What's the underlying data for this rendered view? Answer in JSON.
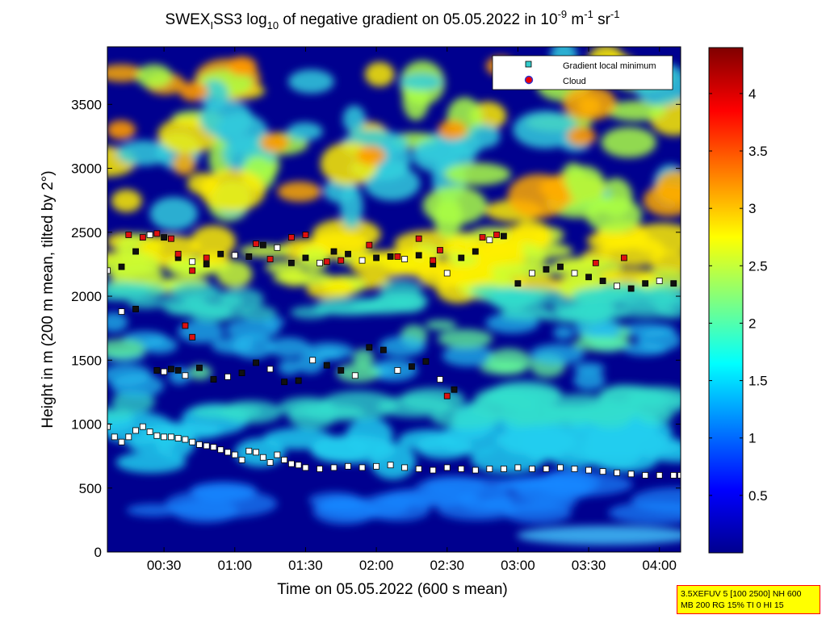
{
  "chart_data": {
    "type": "heatmap",
    "title": {
      "prefix": "SWEX",
      "prefix_sub": "I",
      "mid": "SS3 log",
      "log_sub": "10",
      "rest": " of negative gradient on 05.05.2022 in 10",
      "exp1": "-9",
      "unit_m": " m",
      "exp2": "-1",
      "unit_sr": " sr",
      "exp3": "-1"
    },
    "xlabel": "Time on 05.05.2022 (600 s mean)",
    "ylabel": "Height in m (200 m mean, tilted by 2°)",
    "x_range_hours": [
      0.1,
      4.15
    ],
    "xticks": [
      {
        "t": 0.5,
        "label": "00:30"
      },
      {
        "t": 1.0,
        "label": "01:00"
      },
      {
        "t": 1.5,
        "label": "01:30"
      },
      {
        "t": 2.0,
        "label": "02:00"
      },
      {
        "t": 2.5,
        "label": "02:30"
      },
      {
        "t": 3.0,
        "label": "03:00"
      },
      {
        "t": 3.5,
        "label": "03:30"
      },
      {
        "t": 4.0,
        "label": "04:00"
      }
    ],
    "ylim": [
      0,
      3950
    ],
    "yticks": [
      0,
      500,
      1000,
      1500,
      2000,
      2500,
      3000,
      3500
    ],
    "colorbar": {
      "range": [
        0,
        4.4
      ],
      "ticks": [
        {
          "v": 0.5,
          "label": "0.5"
        },
        {
          "v": 1,
          "label": "1"
        },
        {
          "v": 1.5,
          "label": "1.5"
        },
        {
          "v": 2,
          "label": "2"
        },
        {
          "v": 2.5,
          "label": "2.5"
        },
        {
          "v": 3,
          "label": "3"
        },
        {
          "v": 3.5,
          "label": "3.5"
        },
        {
          "v": 4,
          "label": "4"
        }
      ]
    },
    "legend": {
      "placement": "top-right",
      "entries": [
        {
          "label": "Gradient local minimum",
          "color": "#33cccc"
        },
        {
          "label": "Cloud",
          "color": "#ee0000"
        }
      ]
    },
    "series": [
      {
        "name": "Gradient local minimum",
        "x": [
          0.1,
          0.15,
          0.2,
          0.25,
          0.3,
          0.35,
          0.4,
          0.45,
          0.5,
          0.55,
          0.6,
          0.65,
          0.7,
          0.75,
          0.8,
          0.85,
          0.9,
          0.95,
          1.0,
          1.05,
          1.1,
          1.15,
          1.2,
          1.25,
          1.3,
          1.35,
          1.4,
          1.45,
          1.5,
          1.6,
          1.7,
          1.8,
          1.9,
          2.0,
          2.1,
          2.2,
          2.3,
          2.4,
          2.5,
          2.6,
          2.7,
          2.8,
          2.9,
          3.0,
          3.1,
          3.2,
          3.3,
          3.4,
          3.5,
          3.6,
          3.7,
          3.8,
          3.9,
          4.0,
          4.1,
          4.15
        ],
        "y": [
          980,
          900,
          860,
          900,
          950,
          980,
          940,
          910,
          900,
          900,
          890,
          880,
          860,
          840,
          830,
          820,
          800,
          780,
          760,
          720,
          790,
          780,
          740,
          700,
          760,
          720,
          690,
          680,
          660,
          650,
          660,
          670,
          660,
          670,
          680,
          660,
          650,
          640,
          660,
          650,
          640,
          650,
          650,
          660,
          650,
          650,
          660,
          650,
          640,
          630,
          620,
          610,
          600,
          600,
          600,
          600
        ]
      },
      {
        "name": "Gradient local minimum",
        "x": [
          0.1,
          0.2,
          0.3,
          0.4,
          0.5,
          0.6,
          0.7,
          0.8,
          0.9,
          1.0,
          1.1,
          1.2,
          1.3,
          1.4,
          1.5,
          1.6,
          1.7,
          1.8,
          1.9,
          2.0,
          2.1,
          2.2,
          2.3,
          2.4,
          2.5,
          2.6,
          2.7,
          2.8,
          2.9,
          3.0,
          3.1,
          3.2,
          3.3,
          3.4,
          3.5,
          3.6,
          3.7,
          3.8,
          3.9,
          4.0,
          4.1
        ],
        "y": [
          2200,
          2230,
          2350,
          2480,
          2460,
          2300,
          2270,
          2250,
          2330,
          2320,
          2310,
          2400,
          2380,
          2260,
          2300,
          2260,
          2350,
          2330,
          2280,
          2300,
          2310,
          2290,
          2320,
          2250,
          2180,
          2300,
          2350,
          2440,
          2470,
          2100,
          2180,
          2210,
          2230,
          2180,
          2150,
          2120,
          2080,
          2060,
          2100,
          2120,
          2100
        ]
      },
      {
        "name": "Gradient local minimum",
        "x": [
          0.2,
          0.3,
          0.45,
          0.5,
          0.55,
          0.6,
          0.65,
          0.75,
          0.85,
          0.95,
          1.05,
          1.15,
          1.25,
          1.35,
          1.45,
          1.55,
          1.65,
          1.75,
          1.85,
          1.95,
          2.05,
          2.15,
          2.25,
          2.35,
          2.45,
          2.55
        ],
        "y": [
          1880,
          1900,
          1420,
          1410,
          1430,
          1420,
          1380,
          1440,
          1350,
          1370,
          1400,
          1480,
          1430,
          1330,
          1340,
          1500,
          1460,
          1420,
          1380,
          1600,
          1580,
          1420,
          1450,
          1490,
          1350,
          1270
        ]
      },
      {
        "name": "Cloud",
        "x": [
          0.25,
          0.35,
          0.45,
          0.55,
          0.6,
          0.7,
          0.8,
          1.15,
          1.25,
          1.4,
          1.5,
          1.65,
          1.75,
          1.95,
          2.15,
          2.3,
          2.4,
          2.45,
          2.75,
          2.85,
          3.55,
          3.75,
          0.65,
          0.7,
          2.5
        ],
        "y": [
          2480,
          2460,
          2490,
          2450,
          2330,
          2200,
          2300,
          2410,
          2290,
          2460,
          2480,
          2270,
          2280,
          2400,
          2310,
          2450,
          2280,
          2360,
          2460,
          2480,
          2260,
          2300,
          1770,
          1680,
          1220
        ]
      }
    ]
  },
  "config_box": {
    "line1": "3.5XEFUV 5 [100 2500] NH 600",
    "line2": "MB 200 RG 15% TI 0 HI 15"
  }
}
